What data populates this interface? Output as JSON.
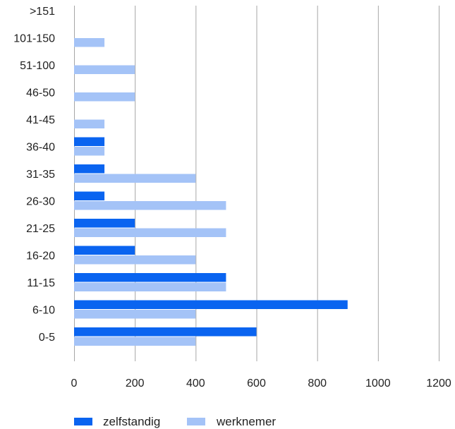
{
  "chart_data": {
    "type": "bar",
    "orientation": "horizontal",
    "categories": [
      "0-5",
      "6-10",
      "11-15",
      "16-20",
      "21-25",
      "26-30",
      "31-35",
      "36-40",
      "41-45",
      "46-50",
      "51-100",
      "101-150",
      ">151"
    ],
    "series": [
      {
        "name": "zelfstandig",
        "color": "#0a64f0",
        "values": [
          600,
          900,
          500,
          200,
          200,
          100,
          100,
          100,
          0,
          0,
          0,
          0,
          0
        ]
      },
      {
        "name": "werknemer",
        "color": "#a4c3f7",
        "values": [
          400,
          400,
          500,
          400,
          500,
          500,
          400,
          100,
          100,
          200,
          200,
          100,
          0
        ]
      }
    ],
    "xlim": [
      0,
      1200
    ],
    "xticks": [
      "0",
      "200",
      "400",
      "600",
      "800",
      "1000",
      "1200"
    ],
    "grid": "vertical",
    "legend_position": "bottom",
    "title": "",
    "xlabel": "",
    "ylabel": ""
  }
}
